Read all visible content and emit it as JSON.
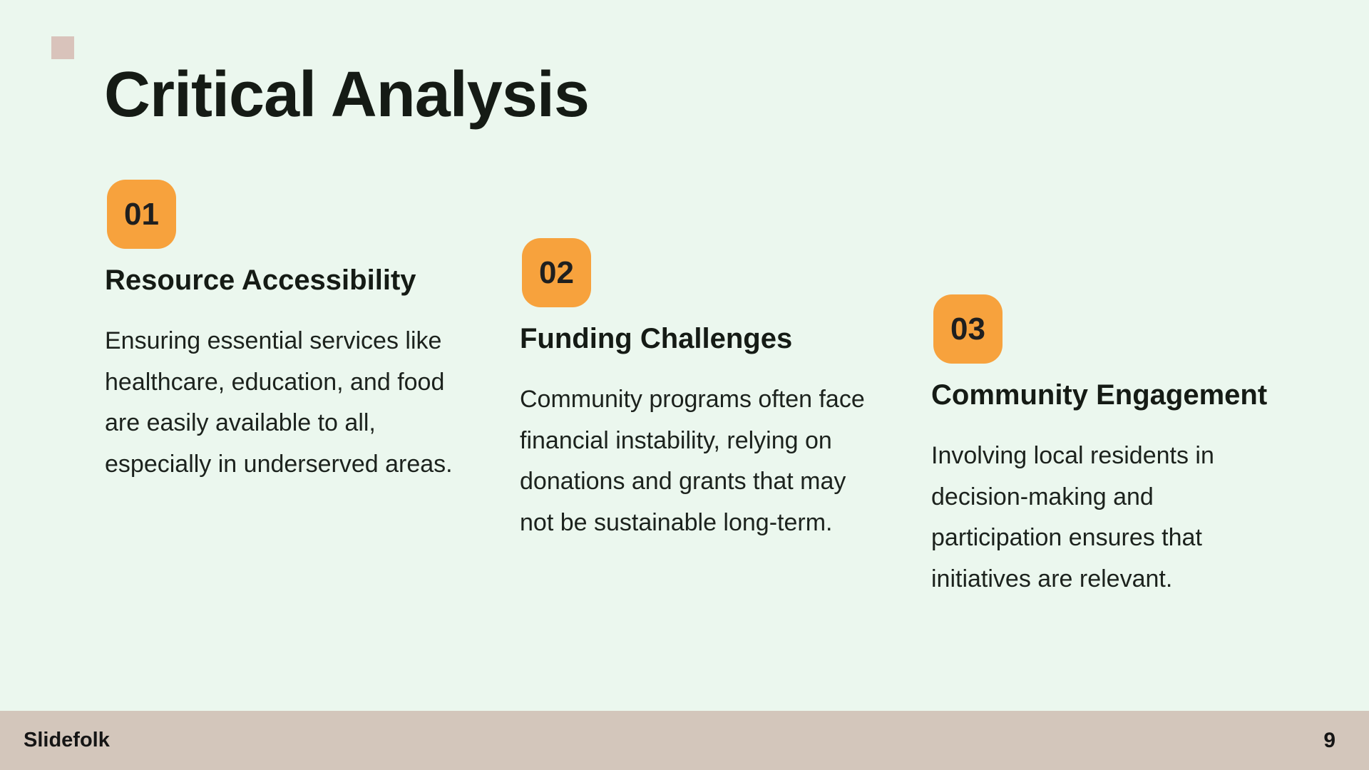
{
  "slide": {
    "title": "Critical Analysis"
  },
  "colors": {
    "background": "#EBF7EE",
    "accent_orange": "#F7A23D",
    "footer_beige": "#D3C6BB",
    "decor_square": "#D9C3BB",
    "text_dark": "#151B15"
  },
  "columns": [
    {
      "number": "01",
      "heading": "Resource Accessibility",
      "body_lines": [
        "Ensuring essential services like",
        "healthcare, education, and food",
        "are easily available to all,",
        "especially in underserved areas."
      ]
    },
    {
      "number": "02",
      "heading": "Funding Challenges",
      "body_lines": [
        "Community programs often face",
        "financial instability, relying on",
        "donations and grants that may",
        "not be sustainable long-term."
      ]
    },
    {
      "number": "03",
      "heading": "Community Engagement",
      "body_lines": [
        "Involving local residents in",
        "decision-making and",
        "participation ensures that",
        "initiatives are relevant."
      ]
    }
  ],
  "footer": {
    "brand": "Slidefolk",
    "page_number": "9"
  }
}
